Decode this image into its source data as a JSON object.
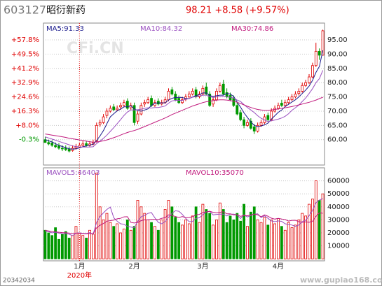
{
  "header": {
    "code": "603127",
    "name": "昭衍新药",
    "quote": "98.21 +8.58 (+9.57%)"
  },
  "watermark": "CFi.CN",
  "footer_left": "20342034",
  "footer_right": "www.gupiao168.com",
  "chart_data": [
    {
      "type": "candlestick",
      "up_color": "#e00000",
      "down_color": "#009900",
      "grid": true,
      "open": [
        60,
        59,
        58.8,
        58,
        57.8,
        57,
        57,
        56.6,
        56.2,
        57,
        57.4,
        58,
        58.6,
        58,
        58.4,
        59.5,
        65.5,
        66,
        68.5,
        70,
        71.5,
        70.5,
        71.5,
        72,
        73.5,
        71.2,
        72,
        66.5,
        69,
        72.5,
        73,
        74.5,
        72,
        73.5,
        72.5,
        73,
        74,
        77.5,
        76,
        74.5,
        73,
        74.2,
        75,
        76,
        77.5,
        75,
        76,
        78.5,
        76,
        72.5,
        74,
        77,
        79.5,
        76.5,
        75.5,
        74.5,
        72,
        69.5,
        67,
        65,
        66.5,
        64.5,
        63,
        65,
        66,
        68.5,
        67,
        70,
        71,
        72.8,
        72,
        73,
        74,
        75,
        76.2,
        77,
        79,
        80,
        82,
        86,
        91,
        89.63
      ],
      "high": [
        61,
        60,
        59.8,
        59,
        58.8,
        58,
        58,
        57.6,
        58,
        58.5,
        59,
        59.5,
        59.6,
        59.5,
        60,
        66,
        67,
        69,
        71,
        72,
        72.5,
        72,
        73,
        74,
        74.5,
        73,
        73,
        70,
        73,
        74,
        75,
        75.5,
        74,
        74.5,
        74,
        75,
        78,
        78.5,
        77,
        75.5,
        75,
        76,
        77,
        78,
        78.5,
        77,
        79,
        80,
        77,
        75,
        78,
        80,
        81,
        78,
        76.5,
        75.5,
        73,
        70.5,
        68,
        67,
        67.5,
        65.5,
        66,
        67,
        69,
        69.5,
        71,
        72,
        73,
        74,
        74,
        75,
        76,
        77,
        78,
        80,
        81,
        83,
        87,
        94,
        92,
        98.59
      ],
      "low": [
        59,
        58,
        57.5,
        57,
        56.5,
        56,
        56,
        55.5,
        55.8,
        56.5,
        57,
        57.5,
        57.5,
        57.5,
        58,
        59,
        64.5,
        65.5,
        67.5,
        69.5,
        70,
        70,
        70.5,
        71.5,
        70.5,
        70.5,
        65,
        65.5,
        68.5,
        71.5,
        72.5,
        71.5,
        71.5,
        72,
        72,
        72.5,
        73.5,
        75.5,
        73.5,
        72.5,
        72.5,
        73.5,
        74.5,
        75.5,
        74.5,
        74.5,
        75.5,
        75.5,
        71.5,
        71.5,
        73.5,
        76.5,
        75.5,
        74.5,
        73.5,
        71.5,
        68.5,
        66.5,
        64,
        64.5,
        63.5,
        62,
        62.5,
        64.5,
        65.5,
        66.5,
        66.5,
        69.5,
        70.5,
        71.5,
        71.5,
        72.5,
        73.5,
        74.5,
        75.5,
        76.5,
        78.5,
        79.5,
        81.5,
        85.5,
        88,
        89.5
      ],
      "close": [
        59,
        58.5,
        58,
        57.5,
        57,
        56.8,
        56.5,
        56,
        57,
        57.5,
        58,
        58.5,
        58,
        58.5,
        59,
        65,
        66,
        68,
        70,
        71,
        70.5,
        71,
        72,
        73,
        71,
        72,
        66,
        69,
        72,
        73,
        74,
        72,
        73,
        72.5,
        73,
        74,
        77,
        76,
        74,
        73,
        74,
        75,
        76,
        77,
        75,
        76,
        78,
        76,
        72,
        74,
        77,
        79,
        76,
        75,
        74,
        72,
        69,
        67,
        65,
        66,
        64,
        63,
        65,
        66,
        68,
        67,
        70,
        71,
        72,
        72,
        73,
        74,
        75,
        76,
        77,
        79,
        80,
        82,
        86,
        91,
        89.63,
        98.21
      ],
      "series": [
        {
          "name": "MA5:91.33",
          "color": "#1a1a8c",
          "values": [
            60,
            59.6,
            59.2,
            58.6,
            58,
            57.6,
            57.2,
            56.8,
            56.7,
            56.8,
            57.1,
            57.5,
            57.8,
            58.1,
            58.4,
            59.7,
            61.3,
            63.2,
            65.6,
            68,
            69.1,
            70.1,
            70.7,
            71.5,
            71.5,
            71.9,
            70.8,
            70.2,
            70,
            70.4,
            70.8,
            72,
            72.8,
            72.9,
            72.9,
            72.9,
            73.9,
            74.5,
            74.8,
            74.8,
            74.8,
            74.4,
            74.4,
            75,
            75.4,
            75.8,
            76.4,
            76.4,
            75.4,
            75.2,
            75.4,
            75.6,
            75.6,
            76.2,
            76,
            75.2,
            73.2,
            71.4,
            69.4,
            67.8,
            66.2,
            65,
            64.6,
            64.8,
            65.2,
            65.8,
            67.2,
            68.4,
            69.6,
            70.4,
            71.6,
            72.4,
            73.2,
            74,
            75,
            76.2,
            77.4,
            78.8,
            80.8,
            83.6,
            85.7,
            91.33
          ]
        },
        {
          "name": "MA10:84.32",
          "color": "#9a4fc0",
          "values": [
            61,
            60.6,
            60.2,
            59.8,
            59.4,
            59,
            58.6,
            58.2,
            57.8,
            57.6,
            57.4,
            57.4,
            57.4,
            57.4,
            57.5,
            58.6,
            59.5,
            60.5,
            61.6,
            62.9,
            64.2,
            65.6,
            67,
            68.5,
            69.7,
            70.4,
            70.4,
            70.5,
            70.7,
            71,
            71.2,
            71.1,
            71.3,
            71.3,
            71.5,
            71.8,
            72.8,
            73.6,
            73.8,
            73.8,
            73.8,
            74.1,
            74.4,
            74.9,
            75.1,
            75.3,
            75.6,
            75.6,
            75.1,
            74.8,
            75,
            75.1,
            75.2,
            75,
            74.9,
            74.6,
            73.9,
            73.4,
            72.3,
            71.3,
            70.4,
            69.5,
            68.4,
            67.5,
            66.9,
            66.3,
            66.6,
            66.9,
            67.2,
            67.6,
            68.2,
            69.1,
            70.3,
            71.2,
            72.1,
            73.4,
            74.6,
            76.2,
            77.9,
            80,
            81.4,
            84.32
          ]
        },
        {
          "name": "MA30:74.86",
          "color": "#c0187c",
          "values": [
            62,
            61.8,
            61.6,
            61.4,
            61.2,
            61,
            60.8,
            60.5,
            60.3,
            60.1,
            59.9,
            59.7,
            59.5,
            59.3,
            59.1,
            59.2,
            59.4,
            59.6,
            59.9,
            60.3,
            60.7,
            61.1,
            61.6,
            62.1,
            62.5,
            62.9,
            63.2,
            63.6,
            64.1,
            64.6,
            65.1,
            65.6,
            66.1,
            66.6,
            67.1,
            67.6,
            68.2,
            68.8,
            69.3,
            69.8,
            70.3,
            70.8,
            71.3,
            71.8,
            72.2,
            72.6,
            73,
            73.3,
            73.5,
            73.7,
            73.9,
            74,
            74,
            73.9,
            73.7,
            73.5,
            73.1,
            72.7,
            72.2,
            71.7,
            71.3,
            70.9,
            70.6,
            70.4,
            70.3,
            70.3,
            70.4,
            70.6,
            70.8,
            71,
            71.2,
            71.4,
            71.6,
            71.9,
            72.2,
            72.5,
            72.8,
            73.1,
            73.5,
            73.9,
            74.4,
            74.86
          ]
        }
      ],
      "ylim": [
        51.1,
        100.9
      ],
      "yticks": [
        {
          "value": 60,
          "label": "60.00"
        },
        {
          "value": 65,
          "label": "65.00"
        },
        {
          "value": 70,
          "label": "70.00"
        },
        {
          "value": 75,
          "label": "75.00"
        },
        {
          "value": 80,
          "label": "80.00"
        },
        {
          "value": 85,
          "label": "85.00"
        },
        {
          "value": 90,
          "label": "90.00"
        },
        {
          "value": 95,
          "label": "95.00"
        }
      ],
      "y2lim": [
        -15.08,
        67.57
      ],
      "y2ticks": [
        {
          "value": -0.3,
          "label": "-0.3%"
        },
        {
          "value": 8.0,
          "label": "+8.0%"
        },
        {
          "value": 16.3,
          "label": "+16.3%"
        },
        {
          "value": 24.6,
          "label": "+24.6%"
        },
        {
          "value": 32.9,
          "label": "+32.9%"
        },
        {
          "value": 41.2,
          "label": "+41.2%"
        },
        {
          "value": 49.5,
          "label": "+49.5%"
        },
        {
          "value": 57.8,
          "label": "+57.8%"
        }
      ]
    },
    {
      "type": "bar",
      "year_label": "2020年",
      "grid": true,
      "categories": [
        null,
        null,
        null,
        null,
        null,
        null,
        null,
        null,
        null,
        null,
        "1月",
        null,
        null,
        null,
        null,
        null,
        null,
        null,
        null,
        null,
        null,
        null,
        null,
        null,
        null,
        null,
        "2月",
        null,
        null,
        null,
        null,
        null,
        null,
        null,
        null,
        null,
        null,
        null,
        null,
        null,
        null,
        null,
        null,
        null,
        null,
        null,
        "3月",
        null,
        null,
        null,
        null,
        null,
        null,
        null,
        null,
        null,
        null,
        null,
        null,
        null,
        null,
        null,
        null,
        null,
        null,
        null,
        null,
        null,
        "4月",
        null,
        null,
        null,
        null,
        null,
        null,
        null,
        null,
        null,
        null,
        null,
        null,
        null
      ],
      "values": [
        22000,
        20000,
        18000,
        24000,
        15000,
        19000,
        21000,
        16000,
        18000,
        25000,
        20000,
        18000,
        16000,
        22000,
        19000,
        66000,
        40000,
        30000,
        35000,
        28000,
        25000,
        27000,
        20000,
        23000,
        30000,
        22000,
        25000,
        45000,
        40000,
        35000,
        30000,
        28000,
        25000,
        22000,
        30000,
        38000,
        45000,
        40000,
        32000,
        28000,
        26000,
        30000,
        27000,
        33000,
        40000,
        28000,
        42000,
        38000,
        35000,
        26000,
        30000,
        43000,
        38000,
        28000,
        33000,
        30000,
        35000,
        29000,
        42000,
        25000,
        36000,
        40000,
        30000,
        28000,
        32000,
        26000,
        30000,
        27000,
        31000,
        25000,
        22000,
        28000,
        24000,
        26000,
        30000,
        35000,
        33000,
        42000,
        46000,
        60000,
        45000,
        50000
      ],
      "series": [
        {
          "name": "MAVOL5:46403",
          "color": "#9a4fc0",
          "values": [
            21000,
            21000,
            20000,
            20500,
            19800,
            19200,
            19400,
            19000,
            17800,
            19800,
            20000,
            19600,
            19400,
            20200,
            19000,
            28200,
            32600,
            35400,
            38000,
            39800,
            31600,
            29000,
            27000,
            26600,
            25000,
            24400,
            24000,
            29000,
            32400,
            33400,
            35000,
            35600,
            31600,
            28000,
            27000,
            28600,
            32000,
            35000,
            37000,
            36600,
            34200,
            31200,
            28600,
            28800,
            31200,
            31600,
            34000,
            36200,
            36600,
            33800,
            34200,
            34400,
            34400,
            33000,
            34400,
            34400,
            33800,
            31000,
            33800,
            32200,
            33400,
            34400,
            34600,
            31800,
            33200,
            31200,
            29200,
            28600,
            29200,
            28800,
            27000,
            26400,
            26000,
            25000,
            26000,
            28600,
            29600,
            33200,
            37200,
            43200,
            45200,
            46403
          ]
        },
        {
          "name": "MAVOL10:35070",
          "color": "#c0187c",
          "values": [
            22000,
            21500,
            21000,
            20800,
            20500,
            20200,
            20100,
            19800,
            19500,
            19800,
            19600,
            19400,
            19200,
            19500,
            19200,
            23900,
            25800,
            27200,
            29000,
            29400,
            29800,
            30800,
            31200,
            32300,
            32400,
            28000,
            27600,
            28000,
            29400,
            30000,
            30000,
            30400,
            30300,
            30200,
            31200,
            31800,
            33800,
            33400,
            32600,
            31800,
            32600,
            31600,
            31800,
            32400,
            33900,
            34200,
            35700,
            36000,
            36600,
            35800,
            35400,
            35800,
            36200,
            34600,
            34600,
            33800,
            34000,
            32700,
            33400,
            33100,
            33800,
            34400,
            33900,
            32400,
            33800,
            32800,
            31300,
            30600,
            31200,
            30600,
            30200,
            29100,
            29600,
            29700,
            28600,
            28100,
            28500,
            28100,
            28800,
            32700,
            35400,
            35070
          ]
        }
      ],
      "ylim": [
        -1500,
        70000
      ],
      "yticks": [
        10000,
        20000,
        30000,
        40000,
        50000,
        60000
      ]
    }
  ]
}
